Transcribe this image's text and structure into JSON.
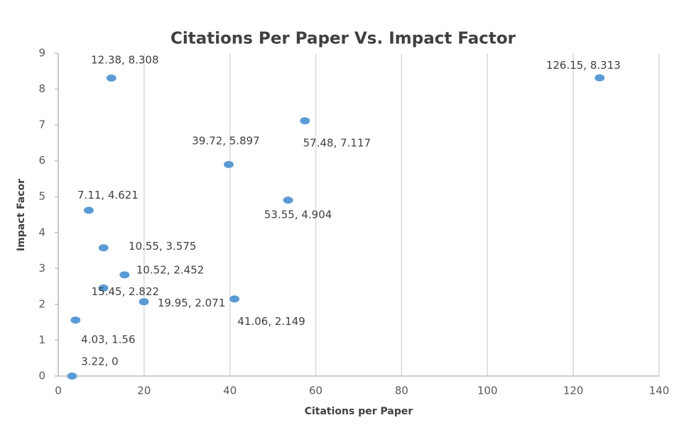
{
  "chart_data": {
    "type": "scatter",
    "title": "Citations Per Paper Vs. Impact Factor",
    "x_label": "Citations per Paper",
    "y_label": "Impact Facor",
    "color": "#5b9bd5",
    "x": [
      12.38,
      126.15,
      57.48,
      39.72,
      7.11,
      53.55,
      10.55,
      10.52,
      15.45,
      19.95,
      41.06,
      4.03,
      3.22
    ],
    "values": [
      8.308,
      8.313,
      7.117,
      5.897,
      4.621,
      4.904,
      3.575,
      2.452,
      2.822,
      2.071,
      2.149,
      1.56,
      0
    ],
    "value_labels": [
      "12.38, 8.308",
      "126.15, 8.313",
      "57.48, 7.117",
      "39.72, 5.897",
      "7.11, 4.621",
      "53.55, 4.904",
      "10.55, 3.575",
      "10.52, 2.452",
      "15.45, 2.822",
      "19.95, 2.071",
      "41.06, 2.149",
      "4.03, 1.56",
      "3.22, 0"
    ],
    "xlim": [
      0,
      140
    ],
    "xticks": [
      0,
      20,
      40,
      60,
      80,
      100,
      120,
      140
    ],
    "ylim": [
      0,
      9
    ],
    "yticks": [
      0,
      1,
      2,
      3,
      4,
      5,
      6,
      7,
      8,
      9
    ],
    "grid": true
  }
}
